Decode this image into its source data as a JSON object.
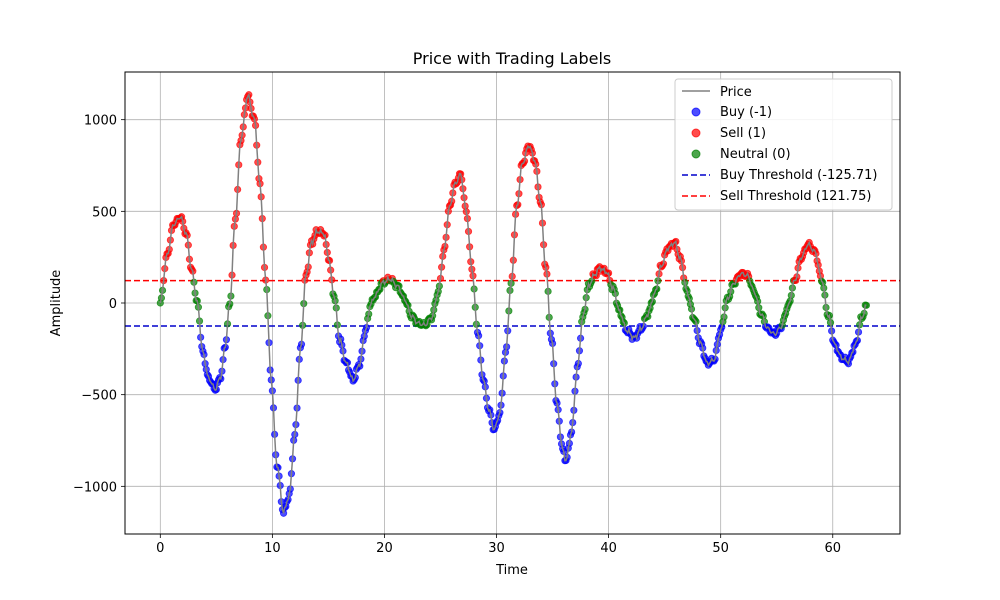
{
  "chart_data": {
    "type": "scatter",
    "title": "Price with Trading Labels",
    "xlabel": "Time",
    "ylabel": "Amplitude",
    "xlim": [
      -3.15,
      66.0
    ],
    "ylim": [
      -1260,
      1260
    ],
    "x_ticks": [
      0,
      10,
      20,
      30,
      40,
      50,
      60
    ],
    "y_ticks": [
      -1000,
      -500,
      0,
      500,
      1000
    ],
    "x_tick_labels": [
      "0",
      "10",
      "20",
      "30",
      "40",
      "50",
      "60"
    ],
    "y_tick_labels": [
      "−1000",
      "−500",
      "0",
      "500",
      "1000"
    ],
    "grid": true,
    "legend_position": "top-right",
    "colors": {
      "price": "#808080",
      "buy": "#0000ff",
      "sell": "#ff0000",
      "neutral": "#008000"
    },
    "price_keypoints": [
      [
        0,
        0
      ],
      [
        0.6,
        260
      ],
      [
        1.2,
        430
      ],
      [
        1.8,
        470
      ],
      [
        2.3,
        380
      ],
      [
        2.8,
        180
      ],
      [
        3.3,
        0
      ],
      [
        3.8,
        -270
      ],
      [
        4.3,
        -410
      ],
      [
        4.9,
        -470
      ],
      [
        5.4,
        -400
      ],
      [
        5.8,
        -230
      ],
      [
        6.2,
        0
      ],
      [
        6.7,
        460
      ],
      [
        7.2,
        900
      ],
      [
        7.8,
        1130
      ],
      [
        8.4,
        1000
      ],
      [
        8.9,
        640
      ],
      [
        9.4,
        130
      ],
      [
        9.9,
        -420
      ],
      [
        10.4,
        -880
      ],
      [
        11.0,
        -1140
      ],
      [
        11.5,
        -1050
      ],
      [
        12.0,
        -720
      ],
      [
        12.5,
        -260
      ],
      [
        13.0,
        150
      ],
      [
        13.5,
        330
      ],
      [
        14.0,
        390
      ],
      [
        14.6,
        380
      ],
      [
        15.0,
        250
      ],
      [
        15.5,
        40
      ],
      [
        16.0,
        -200
      ],
      [
        16.6,
        -330
      ],
      [
        17.2,
        -420
      ],
      [
        17.8,
        -330
      ],
      [
        18.3,
        -150
      ],
      [
        18.8,
        0
      ],
      [
        19.3,
        50
      ],
      [
        19.8,
        110
      ],
      [
        20.5,
        130
      ],
      [
        21.2,
        90
      ],
      [
        21.8,
        20
      ],
      [
        22.4,
        -70
      ],
      [
        23.0,
        -110
      ],
      [
        23.6,
        -120
      ],
      [
        24.2,
        -80
      ],
      [
        24.8,
        60
      ],
      [
        25.3,
        280
      ],
      [
        25.8,
        520
      ],
      [
        26.3,
        650
      ],
      [
        26.8,
        700
      ],
      [
        27.3,
        500
      ],
      [
        27.8,
        190
      ],
      [
        28.3,
        -150
      ],
      [
        28.8,
        -410
      ],
      [
        29.3,
        -580
      ],
      [
        29.8,
        -690
      ],
      [
        30.3,
        -600
      ],
      [
        30.8,
        -280
      ],
      [
        31.3,
        100
      ],
      [
        31.8,
        520
      ],
      [
        32.3,
        760
      ],
      [
        32.9,
        860
      ],
      [
        33.4,
        780
      ],
      [
        33.9,
        560
      ],
      [
        34.4,
        190
      ],
      [
        34.9,
        -200
      ],
      [
        35.4,
        -560
      ],
      [
        35.9,
        -800
      ],
      [
        36.2,
        -860
      ],
      [
        36.7,
        -700
      ],
      [
        37.2,
        -360
      ],
      [
        37.7,
        -80
      ],
      [
        38.2,
        90
      ],
      [
        38.7,
        150
      ],
      [
        39.2,
        190
      ],
      [
        39.8,
        170
      ],
      [
        40.4,
        80
      ],
      [
        41.0,
        -50
      ],
      [
        41.6,
        -150
      ],
      [
        42.3,
        -190
      ],
      [
        42.9,
        -140
      ],
      [
        43.5,
        -60
      ],
      [
        44.1,
        50
      ],
      [
        44.7,
        200
      ],
      [
        45.3,
        300
      ],
      [
        45.9,
        330
      ],
      [
        46.4,
        240
      ],
      [
        47.0,
        60
      ],
      [
        47.6,
        -80
      ],
      [
        48.2,
        -220
      ],
      [
        48.8,
        -330
      ],
      [
        49.4,
        -310
      ],
      [
        50.0,
        -150
      ],
      [
        50.6,
        20
      ],
      [
        51.2,
        110
      ],
      [
        51.8,
        160
      ],
      [
        52.4,
        150
      ],
      [
        53.0,
        60
      ],
      [
        53.6,
        -60
      ],
      [
        54.2,
        -140
      ],
      [
        54.8,
        -170
      ],
      [
        55.4,
        -130
      ],
      [
        56.0,
        -20
      ],
      [
        56.6,
        120
      ],
      [
        57.2,
        250
      ],
      [
        57.8,
        320
      ],
      [
        58.4,
        280
      ],
      [
        59.0,
        130
      ],
      [
        59.6,
        -70
      ],
      [
        60.2,
        -230
      ],
      [
        60.8,
        -300
      ],
      [
        61.4,
        -320
      ],
      [
        62.0,
        -230
      ],
      [
        62.6,
        -80
      ],
      [
        63.0,
        -15
      ]
    ],
    "series": [
      {
        "name": "Price",
        "style": "line",
        "color": "#808080"
      },
      {
        "name": "Buy (-1)",
        "style": "scatter",
        "color": "#0000ff",
        "rule": "y < -125.71"
      },
      {
        "name": "Sell (1)",
        "style": "scatter",
        "color": "#ff0000",
        "rule": "y > 121.75"
      },
      {
        "name": "Neutral (0)",
        "style": "scatter",
        "color": "#008000",
        "rule": "-125.71 <= y <= 121.75"
      },
      {
        "name": "Buy Threshold (-125.71)",
        "style": "hline-dashed",
        "value": -125.71,
        "color": "#0000cc"
      },
      {
        "name": "Sell Threshold (121.75)",
        "style": "hline-dashed",
        "value": 121.75,
        "color": "#ff0000"
      }
    ]
  }
}
